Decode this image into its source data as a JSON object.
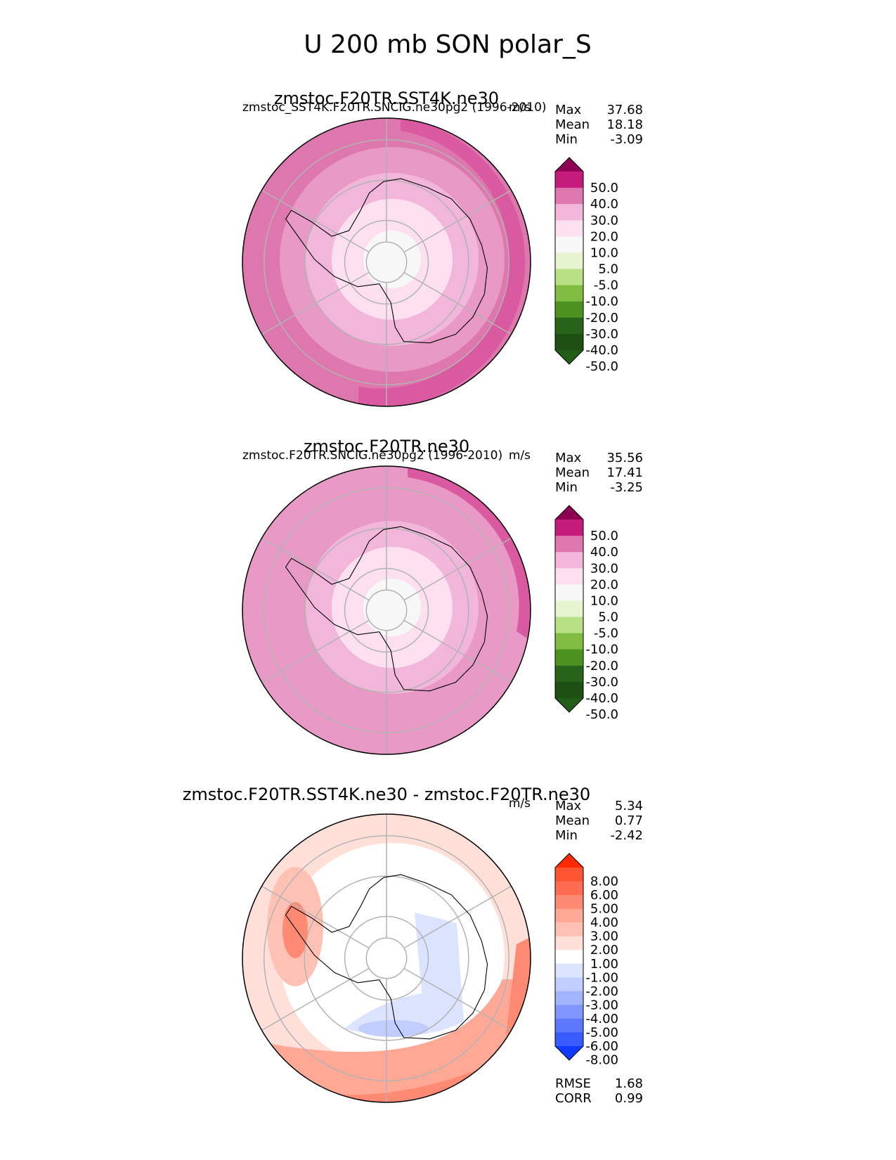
{
  "figure": {
    "title": "U 200 mb SON polar_S"
  },
  "chart_data": [
    {
      "type": "heatmap",
      "projection": "south-polar-stereographic",
      "title": "zmstoc.F20TR.SST4K.ne30",
      "subtitle_left": "zmstoc_SST4K.F20TR.SNCIG.ne30pg2 (1996-2010)",
      "units": "m/s",
      "stats": [
        {
          "label": "Max",
          "value": "37.68"
        },
        {
          "label": "Mean",
          "value": "18.18"
        },
        {
          "label": "Min",
          "value": "-3.09"
        }
      ],
      "colorbar": {
        "levels": [
          "50.0",
          "40.0",
          "30.0",
          "20.0",
          "10.0",
          "5.0",
          "-5.0",
          "-10.0",
          "-20.0",
          "-30.0",
          "-40.0",
          "-50.0"
        ],
        "colors": [
          "#8e0152",
          "#c51b7d",
          "#de77ae",
          "#f1b6da",
          "#fde0ef",
          "#f7f7f7",
          "#e6f5d0",
          "#b8e186",
          "#7fbc41",
          "#4d9221",
          "#276419",
          "#1d4f12",
          "#225e18"
        ],
        "extend": "both"
      },
      "rings_outer_to_inner": [
        "#de77ae",
        "#e899c6",
        "#f1b6da",
        "#fde0ef",
        "#f7f7f7"
      ],
      "ring_values_outer_to_inner": [
        30,
        25,
        20,
        10,
        0
      ]
    },
    {
      "type": "heatmap",
      "projection": "south-polar-stereographic",
      "title": "zmstoc.F20TR.ne30",
      "subtitle_left": "zmstoc.F20TR.SNCIG.ne30pg2 (1996-2010)",
      "units": "m/s",
      "stats": [
        {
          "label": "Max",
          "value": "35.56"
        },
        {
          "label": "Mean",
          "value": "17.41"
        },
        {
          "label": "Min",
          "value": "-3.25"
        }
      ],
      "colorbar": {
        "levels": [
          "50.0",
          "40.0",
          "30.0",
          "20.0",
          "10.0",
          "5.0",
          "-5.0",
          "-10.0",
          "-20.0",
          "-30.0",
          "-40.0",
          "-50.0"
        ],
        "colors": [
          "#8e0152",
          "#c51b7d",
          "#de77ae",
          "#f1b6da",
          "#fde0ef",
          "#f7f7f7",
          "#e6f5d0",
          "#b8e186",
          "#7fbc41",
          "#4d9221",
          "#276419",
          "#1d4f12",
          "#225e18"
        ],
        "extend": "both"
      },
      "rings_outer_to_inner": [
        "#e899c6",
        "#e899c6",
        "#f1b6da",
        "#fde0ef",
        "#f7f7f7"
      ],
      "ring_values_outer_to_inner": [
        25,
        25,
        20,
        10,
        0
      ]
    },
    {
      "type": "heatmap",
      "projection": "south-polar-stereographic",
      "title": "zmstoc.F20TR.SST4K.ne30 - zmstoc.F20TR.ne30",
      "subtitle_left": "",
      "units": "m/s",
      "stats": [
        {
          "label": "Max",
          "value": "5.34"
        },
        {
          "label": "Mean",
          "value": "0.77"
        },
        {
          "label": "Min",
          "value": "-2.42"
        }
      ],
      "colorbar": {
        "levels": [
          "8.00",
          "6.00",
          "5.00",
          "4.00",
          "3.00",
          "2.00",
          "1.00",
          "-1.00",
          "-2.00",
          "-3.00",
          "-4.00",
          "-5.00",
          "-6.00",
          "-8.00"
        ],
        "colors": [
          "#ff2a00",
          "#ff5533",
          "#ff6c4f",
          "#ff8a73",
          "#ffa895",
          "#ffc1b3",
          "#ffe0d8",
          "#ffffff",
          "#dce3ff",
          "#c1cdff",
          "#a3b4ff",
          "#7f96ff",
          "#5b78ff",
          "#3a5cff",
          "#0f3aff"
        ],
        "extend": "both"
      },
      "rings_outer_to_inner": [
        "#ffe0d8",
        "#ffffff",
        "#ffffff",
        "#ffffff",
        "#ffffff"
      ],
      "ring_values_outer_to_inner": [
        1,
        0,
        0,
        0,
        0
      ],
      "metrics": [
        {
          "label": "RMSE",
          "value": "1.68"
        },
        {
          "label": "CORR",
          "value": "0.99"
        }
      ]
    }
  ]
}
